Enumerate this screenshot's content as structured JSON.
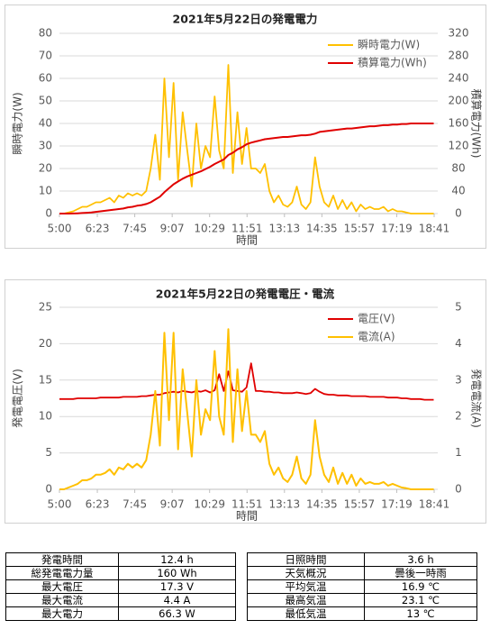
{
  "chart_data": [
    {
      "type": "line",
      "title": "2021年5月22日の発電電力",
      "xlabel": "時間",
      "ylabel": "瞬時電力(W)",
      "y2label": "積算電力(Wh)",
      "xticks": [
        "5:00",
        "6:23",
        "7:45",
        "9:07",
        "10:29",
        "11:51",
        "13:13",
        "14:35",
        "15:57",
        "17:19",
        "18:41"
      ],
      "ylim": [
        0,
        80
      ],
      "yticks": [
        0,
        10,
        20,
        30,
        40,
        50,
        60,
        70,
        80
      ],
      "y2lim": [
        0,
        320
      ],
      "y2ticks": [
        0,
        40,
        80,
        120,
        160,
        200,
        240,
        280,
        320
      ],
      "grid": true,
      "legend": "upper right",
      "x": [
        "5:00",
        "5:10",
        "5:20",
        "5:30",
        "5:40",
        "5:50",
        "6:00",
        "6:10",
        "6:20",
        "6:30",
        "6:40",
        "6:50",
        "7:00",
        "7:10",
        "7:20",
        "7:30",
        "7:40",
        "7:50",
        "8:00",
        "8:10",
        "8:20",
        "8:30",
        "8:40",
        "8:50",
        "9:00",
        "9:10",
        "9:20",
        "9:30",
        "9:40",
        "9:50",
        "10:00",
        "10:10",
        "10:20",
        "10:30",
        "10:40",
        "10:50",
        "11:00",
        "11:10",
        "11:20",
        "11:30",
        "11:40",
        "11:50",
        "12:00",
        "12:10",
        "12:20",
        "12:30",
        "12:40",
        "12:50",
        "13:00",
        "13:10",
        "13:20",
        "13:30",
        "13:40",
        "13:50",
        "14:00",
        "14:10",
        "14:20",
        "14:30",
        "14:40",
        "14:50",
        "15:00",
        "15:10",
        "15:20",
        "15:30",
        "15:40",
        "15:50",
        "16:00",
        "16:10",
        "16:20",
        "16:30",
        "16:40",
        "16:50",
        "17:00",
        "17:10",
        "17:20",
        "17:30",
        "17:40",
        "17:50",
        "18:00",
        "18:10",
        "18:20",
        "18:30",
        "18:40"
      ],
      "series": [
        {
          "name": "瞬時電力(W)",
          "color": "#ffc000",
          "values": [
            0,
            0,
            0.5,
            1,
            2,
            3,
            3,
            4,
            5,
            5,
            6,
            7,
            5,
            8,
            7,
            9,
            8,
            9,
            8,
            10,
            20,
            35,
            15,
            60,
            25,
            58,
            15,
            45,
            28,
            12,
            40,
            20,
            30,
            25,
            52,
            28,
            20,
            66,
            18,
            45,
            22,
            38,
            20,
            20,
            18,
            22,
            10,
            5,
            8,
            4,
            3,
            5,
            12,
            4,
            2,
            5,
            25,
            12,
            5,
            3,
            8,
            2,
            6,
            2,
            5,
            1,
            4,
            2,
            3,
            2,
            2,
            3,
            1,
            2,
            1,
            1,
            0.5,
            0,
            0,
            0,
            0,
            0,
            0
          ]
        },
        {
          "name": "積算電力(Wh)",
          "color": "#e00000",
          "axis": "y2",
          "values": [
            0,
            0,
            0,
            0.2,
            0.5,
            1,
            1.5,
            2,
            3,
            4,
            5,
            6,
            7,
            8,
            9,
            11,
            12,
            14,
            15,
            17,
            20,
            25,
            30,
            38,
            45,
            52,
            57,
            62,
            66,
            69,
            72,
            75,
            79,
            83,
            88,
            92,
            96,
            104,
            108,
            114,
            118,
            123,
            126,
            128,
            130,
            132,
            133,
            134,
            135,
            136,
            136,
            137,
            138,
            139,
            139,
            140,
            142,
            145,
            146,
            147,
            148,
            149,
            150,
            151,
            151,
            152,
            153,
            154,
            155,
            155,
            156,
            157,
            157,
            158,
            158,
            159,
            159,
            160,
            160,
            160,
            160,
            160,
            160
          ]
        }
      ]
    },
    {
      "type": "line",
      "title": "2021年5月22日の発電電圧・電流",
      "xlabel": "時間",
      "ylabel": "発電電圧(V)",
      "y2label": "発電電流(A)",
      "xticks": [
        "5:00",
        "6:23",
        "7:45",
        "9:07",
        "10:29",
        "11:51",
        "13:13",
        "14:35",
        "15:57",
        "17:19",
        "18:41"
      ],
      "ylim": [
        0,
        25
      ],
      "yticks": [
        0,
        5,
        10,
        15,
        20,
        25
      ],
      "y2lim": [
        0,
        5
      ],
      "y2ticks": [
        0,
        1,
        2,
        3,
        4,
        5
      ],
      "grid": true,
      "legend": "upper right",
      "x": [
        "5:00",
        "5:10",
        "5:20",
        "5:30",
        "5:40",
        "5:50",
        "6:00",
        "6:10",
        "6:20",
        "6:30",
        "6:40",
        "6:50",
        "7:00",
        "7:10",
        "7:20",
        "7:30",
        "7:40",
        "7:50",
        "8:00",
        "8:10",
        "8:20",
        "8:30",
        "8:40",
        "8:50",
        "9:00",
        "9:10",
        "9:20",
        "9:30",
        "9:40",
        "9:50",
        "10:00",
        "10:10",
        "10:20",
        "10:30",
        "10:40",
        "10:50",
        "11:00",
        "11:10",
        "11:20",
        "11:30",
        "11:40",
        "11:50",
        "12:00",
        "12:10",
        "12:20",
        "12:30",
        "12:40",
        "12:50",
        "13:00",
        "13:10",
        "13:20",
        "13:30",
        "13:40",
        "13:50",
        "14:00",
        "14:10",
        "14:20",
        "14:30",
        "14:40",
        "14:50",
        "15:00",
        "15:10",
        "15:20",
        "15:30",
        "15:40",
        "15:50",
        "16:00",
        "16:10",
        "16:20",
        "16:30",
        "16:40",
        "16:50",
        "17:00",
        "17:10",
        "17:20",
        "17:30",
        "17:40",
        "17:50",
        "18:00",
        "18:10",
        "18:20",
        "18:30",
        "18:40"
      ],
      "series": [
        {
          "name": "電圧(V)",
          "color": "#e00000",
          "values": [
            12.4,
            12.4,
            12.4,
            12.4,
            12.5,
            12.5,
            12.5,
            12.5,
            12.5,
            12.6,
            12.6,
            12.6,
            12.6,
            12.6,
            12.7,
            12.7,
            12.7,
            12.7,
            12.8,
            12.8,
            12.9,
            13.0,
            13.0,
            13.2,
            13.3,
            13.4,
            13.3,
            13.5,
            13.4,
            13.3,
            13.5,
            13.4,
            13.6,
            13.3,
            13.6,
            15.8,
            13.5,
            16.2,
            13.6,
            13.5,
            13.4,
            14.0,
            17.3,
            13.5,
            13.5,
            13.4,
            13.4,
            13.3,
            13.3,
            13.2,
            13.2,
            13.2,
            13.3,
            13.2,
            13.1,
            13.2,
            13.8,
            13.4,
            13.1,
            13.0,
            13.0,
            12.9,
            12.9,
            12.9,
            12.8,
            12.8,
            12.8,
            12.8,
            12.7,
            12.7,
            12.7,
            12.7,
            12.6,
            12.6,
            12.6,
            12.5,
            12.5,
            12.4,
            12.4,
            12.4,
            12.3,
            12.3,
            12.3
          ]
        },
        {
          "name": "電流(A)",
          "color": "#ffc000",
          "axis": "y2",
          "values": [
            0,
            0,
            0.05,
            0.1,
            0.15,
            0.25,
            0.25,
            0.3,
            0.4,
            0.4,
            0.45,
            0.55,
            0.4,
            0.6,
            0.55,
            0.7,
            0.6,
            0.7,
            0.6,
            0.8,
            1.5,
            2.7,
            1.2,
            4.3,
            1.9,
            4.3,
            1.1,
            3.3,
            2.1,
            0.9,
            3.0,
            1.5,
            2.2,
            1.9,
            3.8,
            2.0,
            1.5,
            4.4,
            1.3,
            3.3,
            1.6,
            2.7,
            1.5,
            1.5,
            1.3,
            1.6,
            0.7,
            0.4,
            0.6,
            0.3,
            0.2,
            0.4,
            0.9,
            0.3,
            0.15,
            0.4,
            1.9,
            0.9,
            0.4,
            0.2,
            0.6,
            0.15,
            0.45,
            0.15,
            0.4,
            0.1,
            0.3,
            0.15,
            0.2,
            0.15,
            0.15,
            0.2,
            0.1,
            0.15,
            0.1,
            0.05,
            0.03,
            0,
            0,
            0,
            0,
            0,
            0
          ]
        }
      ]
    }
  ],
  "table": {
    "rows": [
      [
        "発電時間",
        "12.4 h",
        "日照時間",
        "3.6 h"
      ],
      [
        "総発電電力量",
        "160 Wh",
        "天気概況",
        "曇後一時雨"
      ],
      [
        "最大電圧",
        "17.3 V",
        "平均気温",
        "16.9 ℃"
      ],
      [
        "最大電流",
        "4.4 A",
        "最高気温",
        "23.1 ℃"
      ],
      [
        "最大電力",
        "66.3 W",
        "最低気温",
        "13 ℃"
      ]
    ]
  }
}
